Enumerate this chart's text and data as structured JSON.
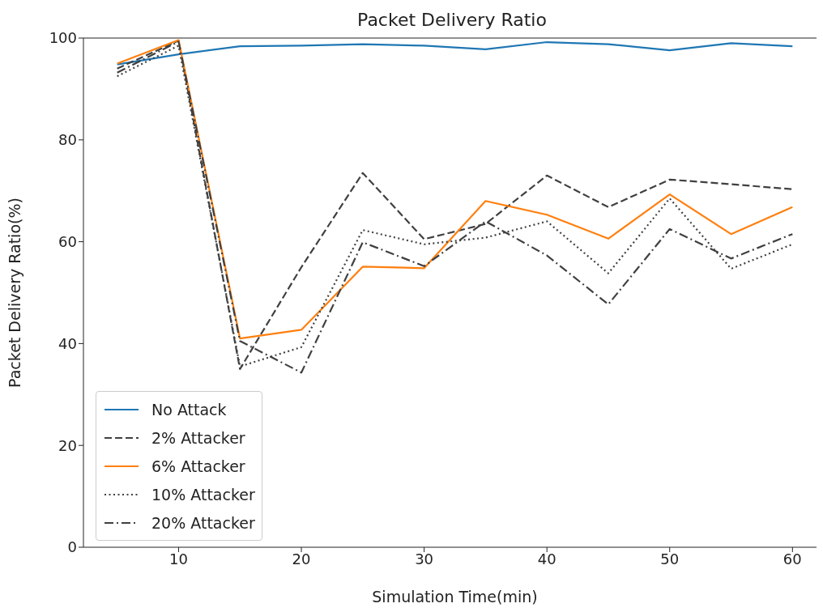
{
  "chart_data": {
    "type": "line",
    "title": "Packet Delivery Ratio",
    "xlabel": "Simulation Time(min)",
    "ylabel": "Packet Delivery Ratio(%)",
    "x": [
      5,
      10,
      15,
      20,
      25,
      30,
      35,
      40,
      45,
      50,
      55,
      60
    ],
    "xlim": [
      2.25,
      62.75
    ],
    "xticks": [
      10,
      20,
      30,
      40,
      50,
      60
    ],
    "ylim": [
      0,
      100
    ],
    "yticks": [
      0,
      20,
      40,
      60,
      80,
      100
    ],
    "grid": false,
    "legend": "bottom left",
    "marker": "none",
    "series": [
      {
        "name": "No Attack",
        "color": "#1f77b4",
        "line_style": "solid",
        "values": [
          94.8,
          96.8,
          98.4,
          98.5,
          98.8,
          98.5,
          97.8,
          99.2,
          98.8,
          97.6,
          99.0,
          98.4
        ]
      },
      {
        "name": "2% Attacker",
        "color": "#404040",
        "line_style": "dashed",
        "values": [
          94,
          99.5,
          35,
          55,
          73.5,
          60.5,
          63.5,
          73,
          66.8,
          72.2,
          71.3,
          70.3
        ]
      },
      {
        "name": "6% Attacker",
        "color": "#ff7f0e",
        "line_style": "solid",
        "values": [
          95,
          99.6,
          41,
          42.7,
          55.1,
          54.8,
          68,
          65.3,
          60.6,
          69.3,
          61.5,
          66.8
        ]
      },
      {
        "name": "10% Attacker",
        "color": "#404040",
        "line_style": "dotted",
        "values": [
          92.5,
          98.5,
          35.5,
          39.3,
          62.3,
          59.5,
          60.8,
          64,
          53.8,
          68.5,
          54.7,
          59.5
        ]
      },
      {
        "name": "20% Attacker",
        "color": "#404040",
        "line_style": "dashdot",
        "values": [
          93.2,
          99.3,
          40.5,
          34.3,
          59.9,
          55.2,
          64.0,
          57.3,
          47.7,
          62.5,
          56.7,
          61.5
        ]
      }
    ]
  }
}
